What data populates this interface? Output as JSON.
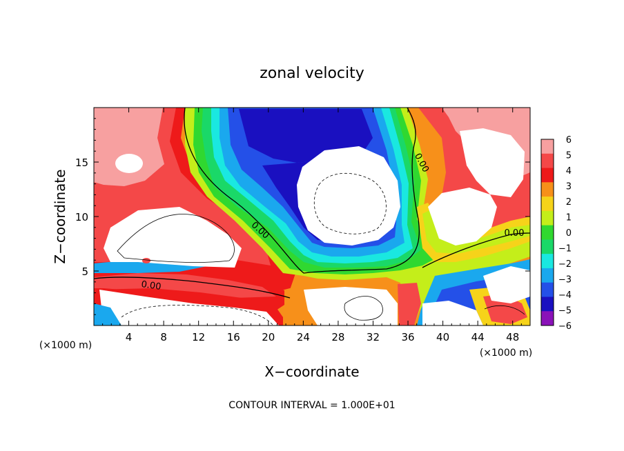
{
  "chart_data": {
    "type": "heatmap",
    "title": "zonal velocity",
    "xlabel": "X−coordinate",
    "ylabel": "Z−coordinate",
    "x_units_left": "(×1000 m)",
    "x_units_right": "(×1000 m)",
    "xlim": [
      0,
      50
    ],
    "ylim": [
      0,
      20
    ],
    "x_ticks": [
      4,
      8,
      12,
      16,
      20,
      24,
      28,
      32,
      36,
      40,
      44,
      48
    ],
    "y_ticks": [
      5,
      10,
      15
    ],
    "x_tick_labels": [
      "4",
      "8",
      "12",
      "16",
      "20",
      "24",
      "28",
      "32",
      "36",
      "40",
      "44",
      "48"
    ],
    "y_tick_labels": [
      "5",
      "10",
      "15"
    ],
    "colorbar": {
      "levels": [
        6,
        5,
        4,
        3,
        2,
        1,
        0,
        -1,
        -2,
        -3,
        -4,
        -5,
        -6
      ],
      "labels": [
        "6",
        "5",
        "4",
        "3",
        "2",
        "1",
        "0",
        "−1",
        "−2",
        "−3",
        "−4",
        "−5",
        "−6"
      ],
      "colors": [
        "#f7a0a0",
        "#f44848",
        "#ee1a1a",
        "#f7901a",
        "#f6d31a",
        "#c4ee1a",
        "#30d830",
        "#1ad868",
        "#1ae8e0",
        "#1aa8ee",
        "#2450e8",
        "#1a10c0",
        "#8a12b8"
      ]
    },
    "contour_labels": [
      "0.00",
      "0.00",
      "0.00",
      "0.00"
    ],
    "footer": "CONTOUR INTERVAL = 1.000E+01"
  }
}
